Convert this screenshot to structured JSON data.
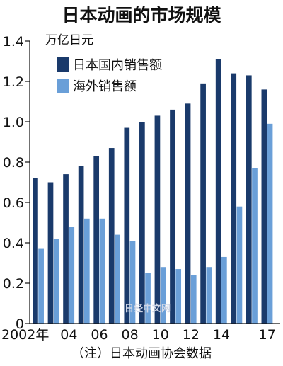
{
  "chart_data": {
    "type": "bar",
    "title": "日本动画的市场规模",
    "unit_label": "万亿日元",
    "categories": [
      "2002",
      "2003",
      "2004",
      "2005",
      "2006",
      "2007",
      "2008",
      "2009",
      "2010",
      "2011",
      "2012",
      "2013",
      "2014",
      "2015",
      "2016",
      "2017"
    ],
    "x_tick_labels": [
      "2002年",
      "",
      "04",
      "",
      "06",
      "",
      "08",
      "",
      "10",
      "",
      "12",
      "",
      "14",
      "",
      "",
      "17"
    ],
    "series": [
      {
        "name": "日本国内销售额",
        "color": "#1a3a6b",
        "values": [
          0.72,
          0.7,
          0.74,
          0.78,
          0.83,
          0.87,
          0.97,
          1.0,
          1.03,
          1.06,
          1.09,
          1.19,
          1.31,
          1.24,
          1.23,
          1.16
        ]
      },
      {
        "name": "海外销售额",
        "color": "#6a9fd8",
        "values": [
          0.37,
          0.42,
          0.48,
          0.52,
          0.52,
          0.44,
          0.41,
          0.25,
          0.28,
          0.27,
          0.24,
          0.28,
          0.33,
          0.58,
          0.77,
          0.99
        ]
      }
    ],
    "ylim": [
      0,
      1.4
    ],
    "y_ticks": [
      "0",
      "0.2",
      "0.4",
      "0.6",
      "0.8",
      "1.0",
      "1.2",
      "1.4"
    ],
    "grid": false,
    "legend_placement": "top-left",
    "source": "（注）日本动画协会数据",
    "watermark": "日经中文网"
  }
}
